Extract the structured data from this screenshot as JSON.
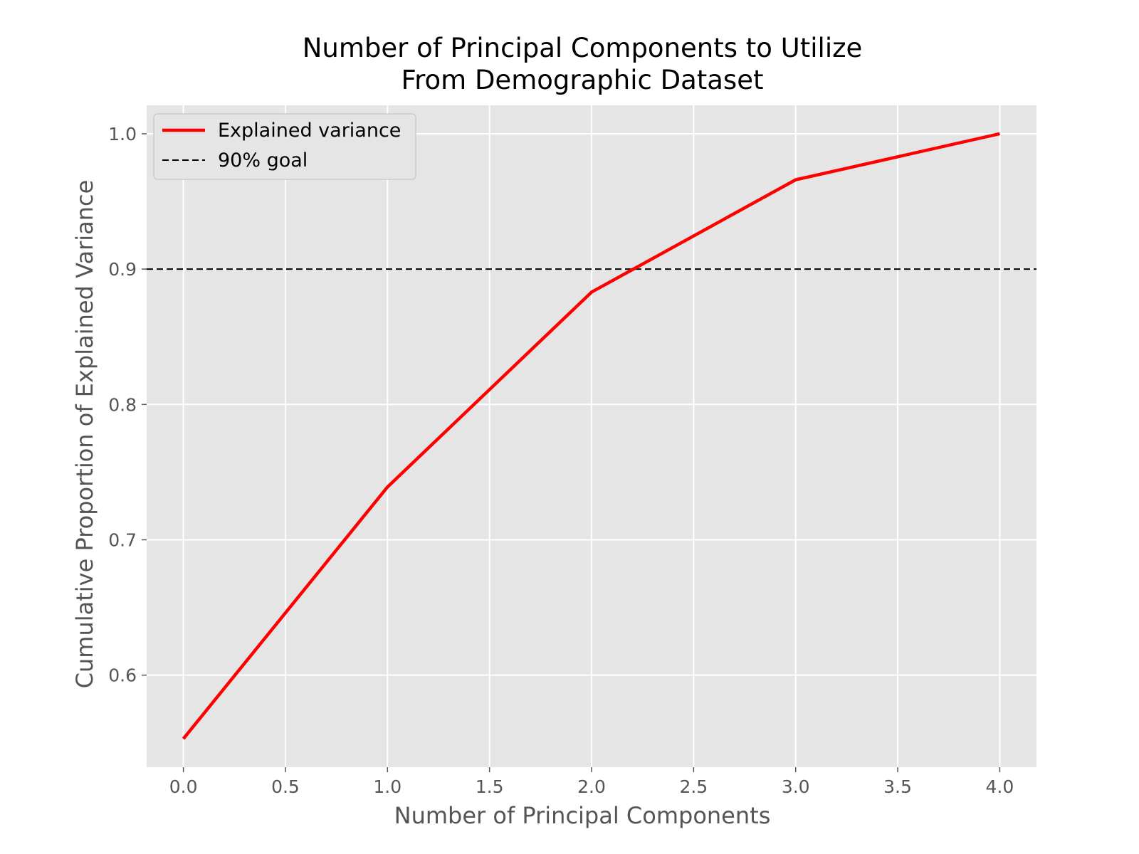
{
  "chart_data": {
    "type": "line",
    "title_lines": [
      "Number of Principal Components to Utilize",
      "From Demographic Dataset"
    ],
    "xlabel": "Number of Principal Components",
    "ylabel": "Cumulative Proportion of Explained Variance",
    "xlim": [
      -0.18,
      4.18
    ],
    "ylim": [
      0.532,
      1.021
    ],
    "x_ticks": [
      0.0,
      0.5,
      1.0,
      1.5,
      2.0,
      2.5,
      3.0,
      3.5,
      4.0
    ],
    "x_tick_labels": [
      "0.0",
      "0.5",
      "1.0",
      "1.5",
      "2.0",
      "2.5",
      "3.0",
      "3.5",
      "4.0"
    ],
    "y_ticks": [
      0.6,
      0.7,
      0.8,
      0.9,
      1.0
    ],
    "y_tick_labels": [
      "0.6",
      "0.7",
      "0.8",
      "0.9",
      "1.0"
    ],
    "grid": true,
    "legend_position": "upper-left",
    "series": [
      {
        "name": "Explained variance",
        "x": [
          0,
          1,
          2,
          3,
          4
        ],
        "values": [
          0.553,
          0.739,
          0.883,
          0.966,
          1.0
        ],
        "color": "#ff0000",
        "style": "solid"
      }
    ],
    "reference_lines": [
      {
        "name": "90% goal",
        "y": 0.9,
        "color": "#000000",
        "style": "dashed"
      }
    ],
    "colors": {
      "plot_background": "#e5e5e5",
      "grid": "#ffffff",
      "figure_background": "#ffffff"
    }
  }
}
